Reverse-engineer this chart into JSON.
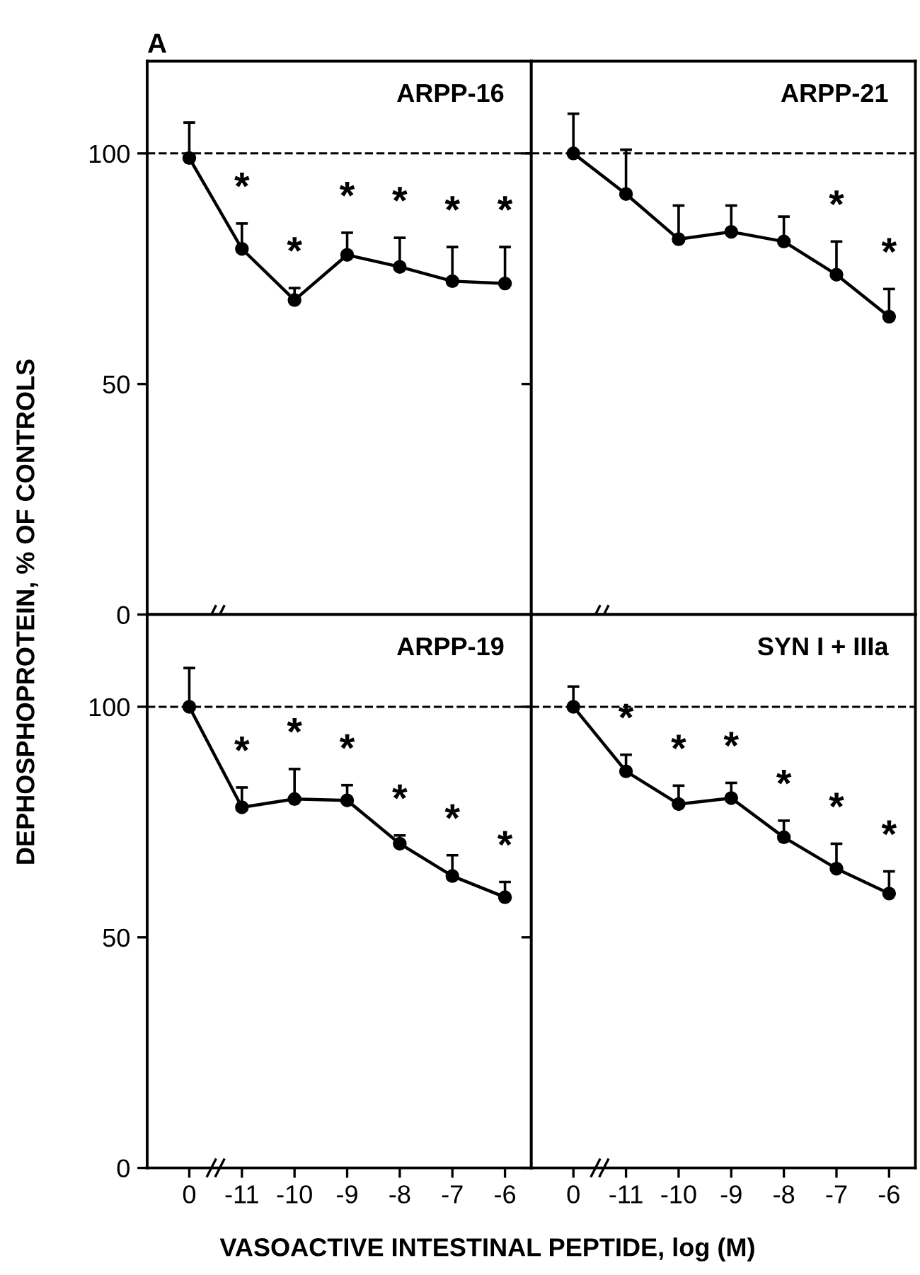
{
  "chart_data": [
    {
      "type": "line",
      "title": "ARPP-16",
      "ylabel": "DEPHOSPHOPROTEIN, % OF CONTROLS",
      "categories": [
        "0",
        "-11",
        "-10",
        "-9",
        "-8",
        "-7",
        "-6"
      ],
      "ylim": [
        0,
        120
      ],
      "yticks": [
        0,
        50,
        100
      ],
      "tick_labels": "y",
      "marker": "circle",
      "line_style": "solid",
      "grid": false,
      "legend": false,
      "series": [
        {
          "color": "#000000",
          "values": [
            99,
            79.3,
            68.2,
            78,
            75.4,
            72.3,
            71.8
          ],
          "errors": [
            [
              99,
              106.7
            ],
            [
              79.3,
              84.8
            ],
            [
              68.2,
              70.8
            ],
            [
              78,
              82.8
            ],
            [
              75.4,
              81.7
            ],
            [
              72.3,
              79.7
            ],
            [
              71.8,
              79.7
            ]
          ]
        }
      ],
      "ref_lines": [
        {
          "axis": "y",
          "value": 100,
          "line_style": "dashed"
        }
      ],
      "annotations": [
        "A",
        {
          "text": "*",
          "x": "-11",
          "y": 79.3
        },
        {
          "text": "*",
          "x": "-10",
          "y": 68.2
        },
        {
          "text": "*",
          "x": "-9",
          "y": 78
        },
        {
          "text": "*",
          "x": "-8",
          "y": 75.4
        },
        {
          "text": "*",
          "x": "-7",
          "y": 72.3
        },
        {
          "text": "*",
          "x": "-6",
          "y": 71.8
        }
      ]
    },
    {
      "type": "line",
      "title": "ARPP-21",
      "categories": [
        "0",
        "-11",
        "-10",
        "-9",
        "-8",
        "-7",
        "-6"
      ],
      "ylim": [
        0,
        120
      ],
      "yticks": [
        {
          "value": 0,
          "label": null
        },
        {
          "value": 50,
          "label": null
        },
        {
          "value": 100,
          "label": null
        }
      ],
      "tick_labels": false,
      "marker": "circle",
      "line_style": "solid",
      "grid": false,
      "legend": false,
      "series": [
        {
          "color": "#000000",
          "values": [
            100,
            91.2,
            81.4,
            83,
            80.9,
            73.7,
            64.6
          ],
          "errors": [
            [
              100,
              108.6
            ],
            [
              91.2,
              100.8
            ],
            [
              81.4,
              88.7
            ],
            [
              83,
              88.7
            ],
            [
              80.9,
              86.3
            ],
            [
              73.7,
              80.9
            ],
            [
              64.6,
              70.6
            ]
          ]
        }
      ],
      "ref_lines": [
        {
          "axis": "y",
          "value": 100,
          "line_style": "dashed"
        }
      ],
      "annotations": [
        {
          "text": "*",
          "x": "-7",
          "y": 73.7
        },
        {
          "text": "*",
          "x": "-6",
          "y": 64.6
        }
      ]
    },
    {
      "type": "line",
      "title": "ARPP-19",
      "xlabel": "VASOACTIVE INTESTINAL PEPTIDE, log (M)",
      "categories": [
        "0",
        "-11",
        "-10",
        "-9",
        "-8",
        "-7",
        "-6"
      ],
      "ylim": [
        0,
        120
      ],
      "yticks": [
        0,
        50,
        100
      ],
      "marker": "circle",
      "line_style": "solid",
      "grid": false,
      "legend": false,
      "series": [
        {
          "color": "#000000",
          "values": [
            100,
            78.2,
            80,
            79.7,
            70.3,
            63.3,
            58.7
          ],
          "errors": [
            [
              100,
              108.4
            ],
            [
              78.2,
              82.5
            ],
            [
              80,
              86.5
            ],
            [
              79.7,
              83
            ],
            [
              70.3,
              72.1
            ],
            [
              63.3,
              67.8
            ],
            [
              58.7,
              62
            ]
          ]
        }
      ],
      "ref_lines": [
        {
          "axis": "y",
          "value": 100,
          "line_style": "dashed"
        }
      ],
      "annotations": [
        {
          "text": "*",
          "x": "-11",
          "y": 78.2
        },
        {
          "text": "*",
          "x": "-10",
          "y": 80
        },
        {
          "text": "*",
          "x": "-9",
          "y": 79.7
        },
        {
          "text": "*",
          "x": "-8",
          "y": 70.3
        },
        {
          "text": "*",
          "x": "-7",
          "y": 63.3
        },
        {
          "text": "*",
          "x": "-6",
          "y": 58.7
        }
      ]
    },
    {
      "type": "line",
      "title": "SYN I + IIIa",
      "categories": [
        "0",
        "-11",
        "-10",
        "-9",
        "-8",
        "-7",
        "-6"
      ],
      "ylim": [
        0,
        120
      ],
      "yticks": [
        {
          "value": 0,
          "label": null
        },
        {
          "value": 50,
          "label": null
        },
        {
          "value": 100,
          "label": null
        }
      ],
      "tick_labels": "x",
      "marker": "circle",
      "line_style": "solid",
      "grid": false,
      "legend": false,
      "series": [
        {
          "color": "#000000",
          "values": [
            100,
            86,
            78.9,
            80.2,
            71.7,
            64.9,
            59.5
          ],
          "errors": [
            [
              100,
              104.4
            ],
            [
              86,
              89.6
            ],
            [
              78.9,
              82.9
            ],
            [
              80.2,
              83.5
            ],
            [
              71.7,
              75.3
            ],
            [
              64.9,
              70.3
            ],
            [
              59.5,
              64.3
            ]
          ]
        }
      ],
      "ref_lines": [
        {
          "axis": "y",
          "value": 100,
          "line_style": "dashed"
        }
      ],
      "annotations": [
        {
          "text": "*",
          "x": "-11",
          "y": 86
        },
        {
          "text": "*",
          "x": "-10",
          "y": 78.9
        },
        {
          "text": "*",
          "x": "-9",
          "y": 80.2
        },
        {
          "text": "*",
          "x": "-8",
          "y": 71.7
        },
        {
          "text": "*",
          "x": "-7",
          "y": 64.9
        },
        {
          "text": "*",
          "x": "-6",
          "y": 59.5
        }
      ]
    }
  ]
}
